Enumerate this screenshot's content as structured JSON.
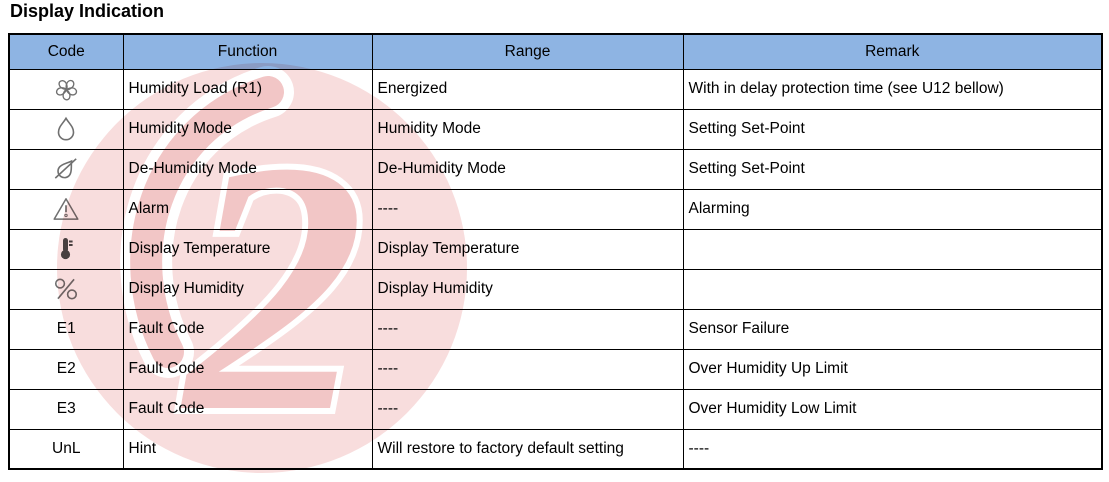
{
  "title": "Display Indication",
  "colors": {
    "header_bg": "#8EB4E3",
    "border": "#000000",
    "watermark_circle": "#f8dddd",
    "watermark_accent": "#f2c6c6",
    "icon_gray": "#707070",
    "thermometer_dark": "#4a4a4a"
  },
  "table": {
    "headers": [
      "Code",
      "Function",
      "Range",
      "Remark"
    ],
    "rows": [
      {
        "icon": "fan-icon",
        "code": "",
        "function": "Humidity Load (R1)",
        "range": "Energized",
        "remark": "With in delay protection time (see U12 bellow)"
      },
      {
        "icon": "humidity-drop-icon",
        "code": "",
        "function": "Humidity Mode",
        "range": "Humidity Mode",
        "remark": "Setting Set-Point"
      },
      {
        "icon": "dehumidity-drop-slash-icon",
        "code": "",
        "function": "De-Humidity Mode",
        "range": "De-Humidity Mode",
        "remark": "Setting Set-Point"
      },
      {
        "icon": "alarm-warning-icon",
        "code": "",
        "function": "Alarm",
        "range": "----",
        "remark": "Alarming"
      },
      {
        "icon": "thermometer-icon",
        "code": "",
        "function": "Display Temperature",
        "range": "Display Temperature",
        "remark": ""
      },
      {
        "icon": "percent-humidity-icon",
        "code": "",
        "function": "Display Humidity",
        "range": "Display Humidity",
        "remark": ""
      },
      {
        "icon": "",
        "code": "E1",
        "function": "Fault Code",
        "range": "----",
        "remark": "Sensor Failure"
      },
      {
        "icon": "",
        "code": "E2",
        "function": "Fault Code",
        "range": "----",
        "remark": "Over Humidity Up Limit"
      },
      {
        "icon": "",
        "code": "E3",
        "function": "Fault Code",
        "range": "----",
        "remark": "Over Humidity Low Limit"
      },
      {
        "icon": "",
        "code": "UnL",
        "function": "Hint",
        "range": "Will restore to factory default setting",
        "remark": "----"
      }
    ]
  }
}
